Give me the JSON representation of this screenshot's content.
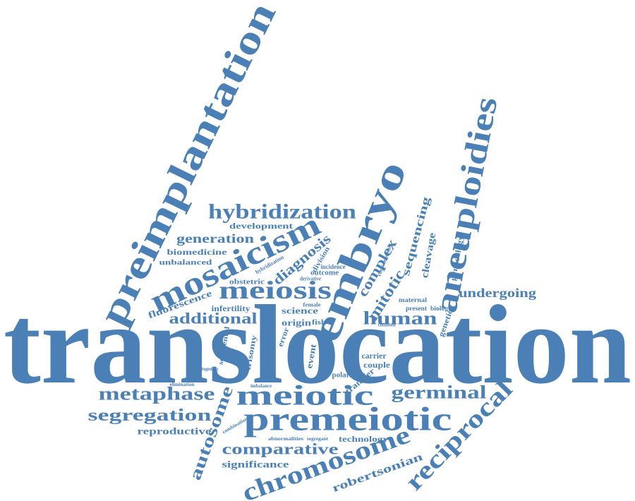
{
  "word_cloud": {
    "color": "#4a80b6",
    "words": [
      "translocation",
      "preimplantation",
      "embryo",
      "aneuploidies",
      "mosaicism",
      "hybridization",
      "meiosis",
      "premeiotic",
      "meiotic",
      "chromosome",
      "reciprocal",
      "metaphase",
      "segregation",
      "germinal",
      "additional",
      "human",
      "comparative",
      "autosome",
      "generation",
      "undergoing",
      "reproductive",
      "significance",
      "technology",
      "robertsonian",
      "development",
      "biomedicine",
      "unbalanced",
      "fluorescence",
      "infertility",
      "science",
      "origin",
      "fish",
      "diagnosis",
      "complex",
      "mitotic",
      "sequencing",
      "cleavage",
      "gynecology",
      "genetic",
      "trisomy",
      "segmental",
      "error",
      "event",
      "carrier",
      "couple",
      "transfer",
      "polar",
      "maternal",
      "present",
      "biology",
      "obstetric",
      "outcome",
      "incidence",
      "division",
      "hybridization",
      "consideration",
      "elimination",
      "cytogenetic",
      "imbalance",
      "abnormalities",
      "segregant",
      "combination",
      "female",
      "derivative",
      "common"
    ]
  }
}
